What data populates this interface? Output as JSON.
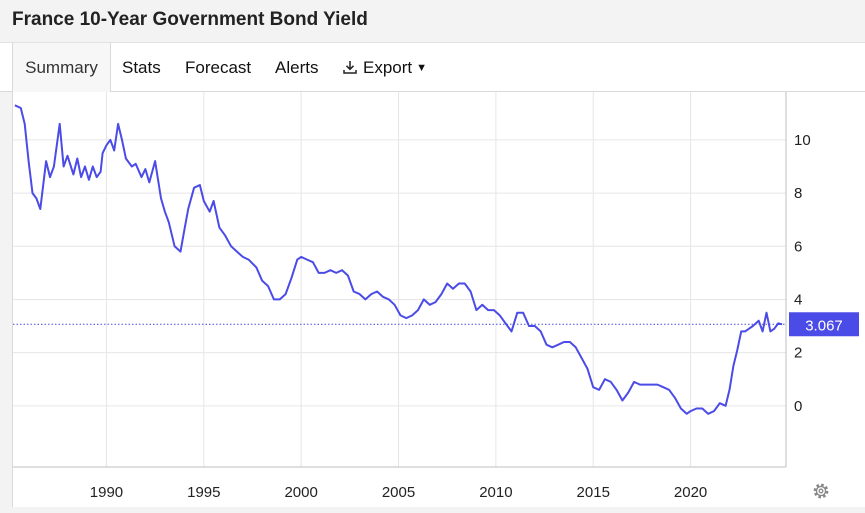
{
  "title": "France 10-Year Government Bond Yield",
  "tabs": {
    "summary": "Summary",
    "stats": "Stats",
    "forecast": "Forecast",
    "alerts": "Alerts",
    "export": "Export"
  },
  "icons": {
    "export": "download-icon",
    "export_caret": "caret-down-icon",
    "settings": "gear-icon"
  },
  "colors": {
    "line": "#4b4be8",
    "badge": "#4b4be8",
    "grid": "#e6e6e6",
    "axis": "#bfbfbf"
  },
  "chart_data": {
    "type": "line",
    "title": "France 10-Year Government Bond Yield",
    "xlabel": "",
    "ylabel": "",
    "x_ticks": [
      "1990",
      "1995",
      "2000",
      "2005",
      "2010",
      "2015",
      "2020"
    ],
    "y_ticks": [
      "0",
      "2",
      "4",
      "6",
      "8",
      "10"
    ],
    "xlim": [
      1985.2,
      2024.9
    ],
    "ylim": [
      -2.3,
      11.8
    ],
    "grid": true,
    "y_axis_position": "right",
    "last_value": 3.067,
    "last_value_label": "3.067",
    "series": [
      {
        "x": [
          1985.3,
          1985.6,
          1985.8,
          1986.0,
          1986.2,
          1986.4,
          1986.6,
          1986.9,
          1987.1,
          1987.3,
          1987.6,
          1987.8,
          1988.0,
          1988.3,
          1988.5,
          1988.7,
          1988.9,
          1989.1,
          1989.3,
          1989.5,
          1989.7,
          1989.8,
          1990.0,
          1990.2,
          1990.4,
          1990.6,
          1990.8,
          1991.0,
          1991.3,
          1991.5,
          1991.8,
          1992.0,
          1992.2,
          1992.5,
          1992.8,
          1993.0,
          1993.2,
          1993.5,
          1993.8,
          1994.0,
          1994.2,
          1994.5,
          1994.8,
          1995.0,
          1995.3,
          1995.5,
          1995.8,
          1996.1,
          1996.4,
          1996.7,
          1997.0,
          1997.3,
          1997.7,
          1998.0,
          1998.3,
          1998.6,
          1998.9,
          1999.2,
          1999.5,
          1999.8,
          2000.0,
          2000.3,
          2000.6,
          2000.9,
          2001.2,
          2001.5,
          2001.8,
          2002.1,
          2002.4,
          2002.7,
          2003.0,
          2003.3,
          2003.6,
          2003.9,
          2004.2,
          2004.5,
          2004.8,
          2005.1,
          2005.4,
          2005.7,
          2006.0,
          2006.3,
          2006.6,
          2006.9,
          2007.2,
          2007.5,
          2007.8,
          2008.1,
          2008.4,
          2008.7,
          2009.0,
          2009.3,
          2009.6,
          2009.9,
          2010.2,
          2010.5,
          2010.8,
          2011.1,
          2011.4,
          2011.7,
          2012.0,
          2012.3,
          2012.6,
          2012.9,
          2013.2,
          2013.5,
          2013.8,
          2014.1,
          2014.4,
          2014.7,
          2015.0,
          2015.3,
          2015.6,
          2015.9,
          2016.2,
          2016.5,
          2016.8,
          2017.1,
          2017.4,
          2017.7,
          2018.0,
          2018.3,
          2018.6,
          2018.9,
          2019.2,
          2019.5,
          2019.8,
          2020.0,
          2020.3,
          2020.6,
          2020.9,
          2021.2,
          2021.5,
          2021.8,
          2022.0,
          2022.2,
          2022.4,
          2022.6,
          2022.8,
          2023.0,
          2023.2,
          2023.5,
          2023.7,
          2023.9,
          2024.1,
          2024.3,
          2024.5,
          2024.7
        ],
        "y": [
          11.3,
          11.2,
          10.6,
          9.2,
          8.0,
          7.8,
          7.4,
          9.2,
          8.6,
          9.0,
          10.6,
          9.0,
          9.4,
          8.7,
          9.3,
          8.6,
          9.0,
          8.5,
          9.0,
          8.6,
          8.8,
          9.5,
          9.8,
          10.0,
          9.6,
          10.6,
          10.0,
          9.3,
          9.0,
          9.1,
          8.6,
          8.9,
          8.4,
          9.2,
          7.8,
          7.3,
          6.9,
          6.0,
          5.8,
          6.6,
          7.4,
          8.2,
          8.3,
          7.7,
          7.3,
          7.7,
          6.7,
          6.4,
          6.0,
          5.8,
          5.6,
          5.5,
          5.2,
          4.7,
          4.5,
          4.0,
          4.0,
          4.2,
          4.8,
          5.5,
          5.6,
          5.5,
          5.4,
          5.0,
          5.0,
          5.1,
          5.0,
          5.1,
          4.9,
          4.3,
          4.2,
          4.0,
          4.2,
          4.3,
          4.1,
          4.0,
          3.8,
          3.4,
          3.3,
          3.4,
          3.6,
          4.0,
          3.8,
          3.9,
          4.2,
          4.6,
          4.4,
          4.6,
          4.6,
          4.3,
          3.6,
          3.8,
          3.6,
          3.6,
          3.4,
          3.1,
          2.8,
          3.5,
          3.5,
          3.0,
          3.0,
          2.8,
          2.3,
          2.2,
          2.3,
          2.4,
          2.4,
          2.2,
          1.8,
          1.4,
          0.7,
          0.6,
          1.0,
          0.9,
          0.6,
          0.2,
          0.5,
          0.9,
          0.8,
          0.8,
          0.8,
          0.8,
          0.7,
          0.6,
          0.3,
          -0.1,
          -0.3,
          -0.2,
          -0.1,
          -0.1,
          -0.3,
          -0.2,
          0.1,
          0.0,
          0.6,
          1.5,
          2.1,
          2.8,
          2.8,
          2.9,
          3.0,
          3.2,
          2.8,
          3.5,
          2.8,
          2.9,
          3.1,
          3.067
        ]
      }
    ]
  }
}
